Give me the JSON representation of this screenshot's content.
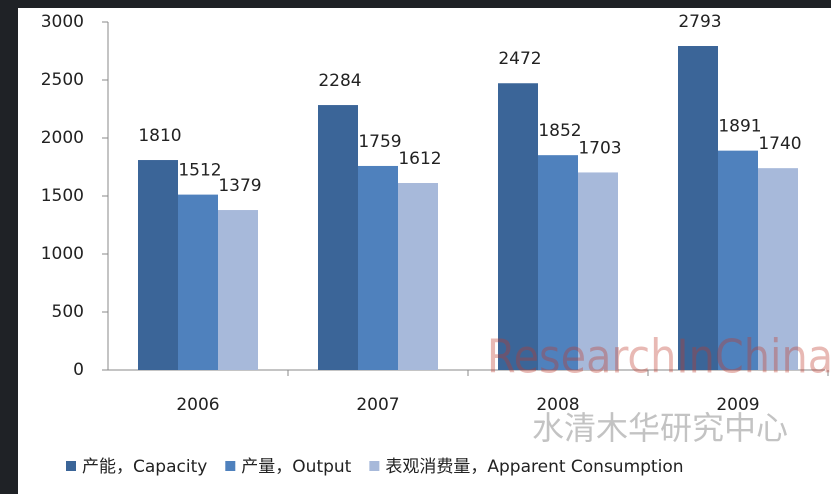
{
  "chart_data": {
    "type": "bar",
    "categories": [
      "2006",
      "2007",
      "2008",
      "2009"
    ],
    "series": [
      {
        "name": "产能，Capacity",
        "color": "#3b6598",
        "values": [
          1810,
          2284,
          2472,
          2793
        ]
      },
      {
        "name": "产量，Output",
        "color": "#4f81bd",
        "values": [
          1512,
          1759,
          1852,
          1891
        ]
      },
      {
        "name": "表观消费量，Apparent Consumption",
        "color": "#a7b9da",
        "values": [
          1379,
          1612,
          1703,
          1740
        ]
      }
    ],
    "ylim": [
      0,
      3000
    ],
    "yticks": [
      0,
      500,
      1000,
      1500,
      2000,
      2500,
      3000
    ],
    "legend": "bottom",
    "watermark": {
      "brand": "ResearchInChina",
      "chinese": "水清木华研究中心"
    }
  }
}
